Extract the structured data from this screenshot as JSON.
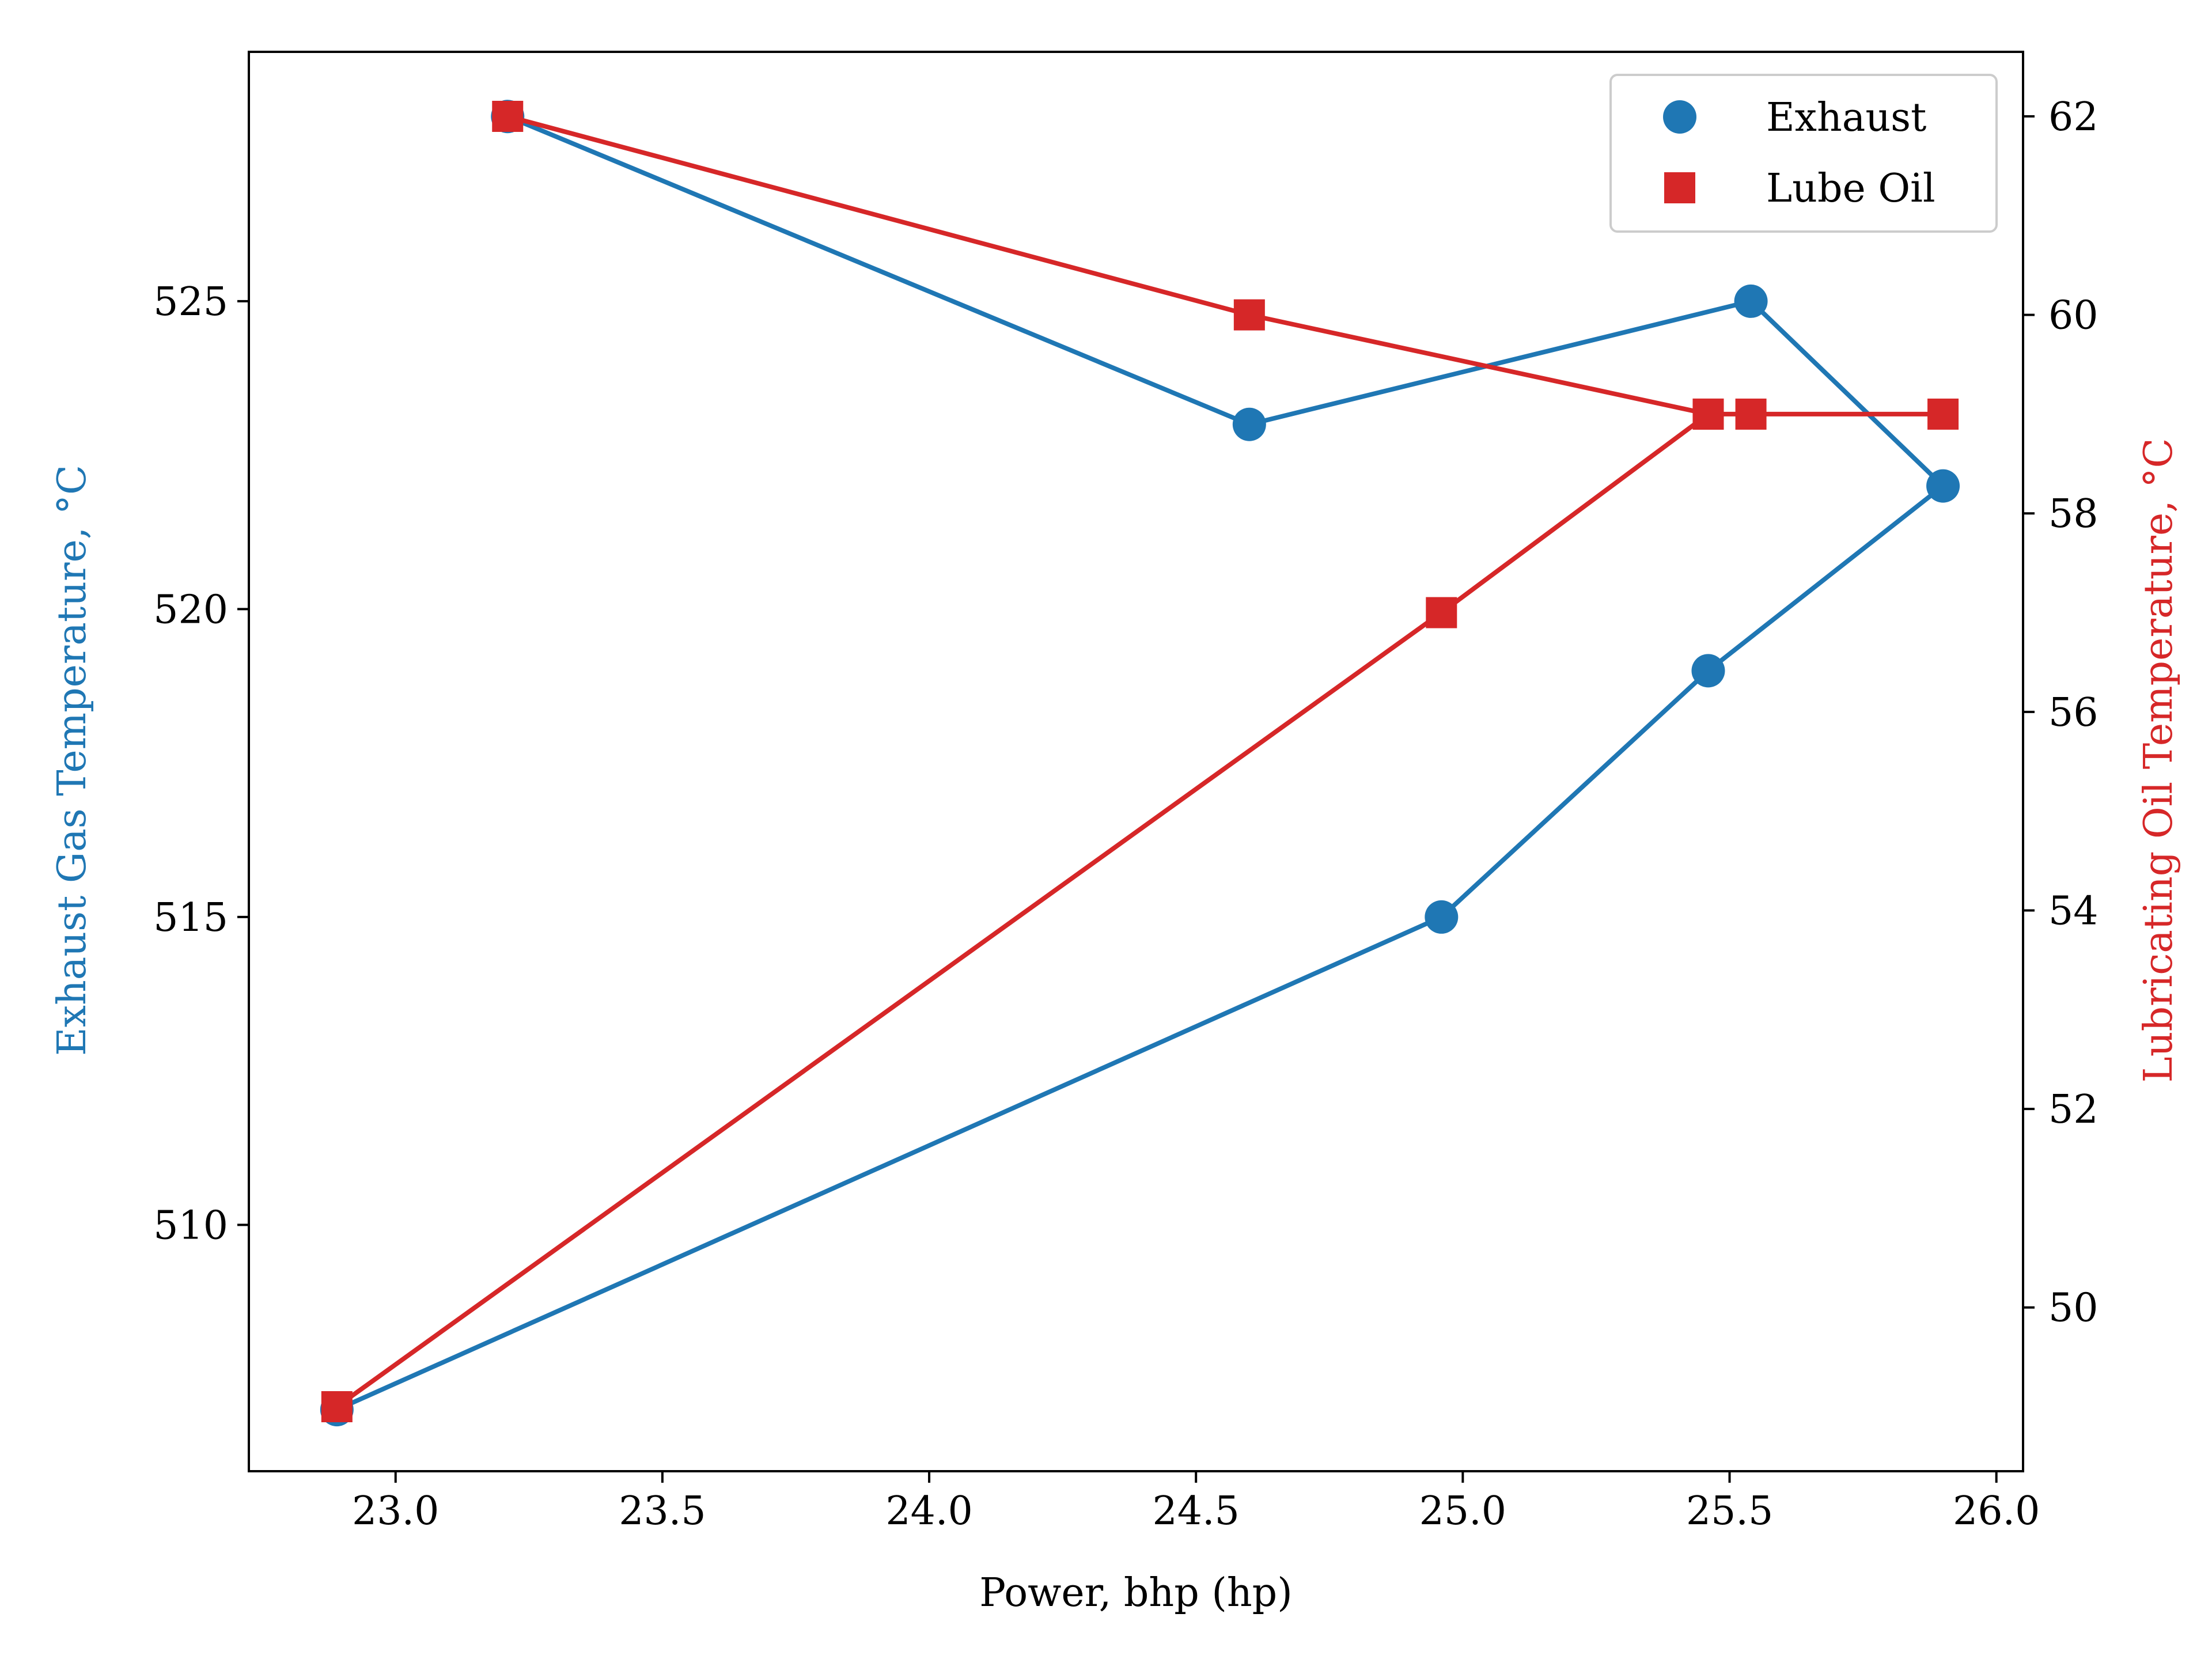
{
  "chart_data": {
    "type": "line",
    "xlabel": "Power, bhp (hp)",
    "x_ticks": [
      "23.0",
      "23.5",
      "24.0",
      "24.5",
      "25.0",
      "25.5",
      "26.0"
    ],
    "xlim": [
      22.725,
      26.05
    ],
    "y_left": {
      "label": "Exhaust Gas Temperature, °C",
      "color": "#1f77b4",
      "ticks": [
        "510",
        "515",
        "520",
        "525"
      ],
      "ylim": [
        506.0,
        529.05
      ]
    },
    "y_right": {
      "label": "Lubricating Oil Temperature, °C",
      "color": "#d62728",
      "ticks": [
        "50",
        "52",
        "54",
        "56",
        "58",
        "60",
        "62"
      ],
      "ylim": [
        48.35,
        62.65
      ]
    },
    "series": [
      {
        "name": "Exhaust",
        "axis": "left",
        "marker": "circle",
        "color": "#1f77b4",
        "x": [
          23.21,
          24.6,
          25.54,
          25.9,
          25.46,
          24.96,
          22.89
        ],
        "y": [
          528,
          523,
          525,
          522,
          519,
          515,
          507
        ]
      },
      {
        "name": "Lube Oil",
        "axis": "right",
        "marker": "square",
        "color": "#d62728",
        "x": [
          23.21,
          24.6,
          25.46,
          25.54,
          25.9,
          25.46,
          24.96,
          22.89
        ],
        "y": [
          62,
          60,
          59,
          59,
          59,
          59,
          57,
          49
        ]
      }
    ],
    "legend": {
      "position": "top-right"
    },
    "grid": false
  }
}
